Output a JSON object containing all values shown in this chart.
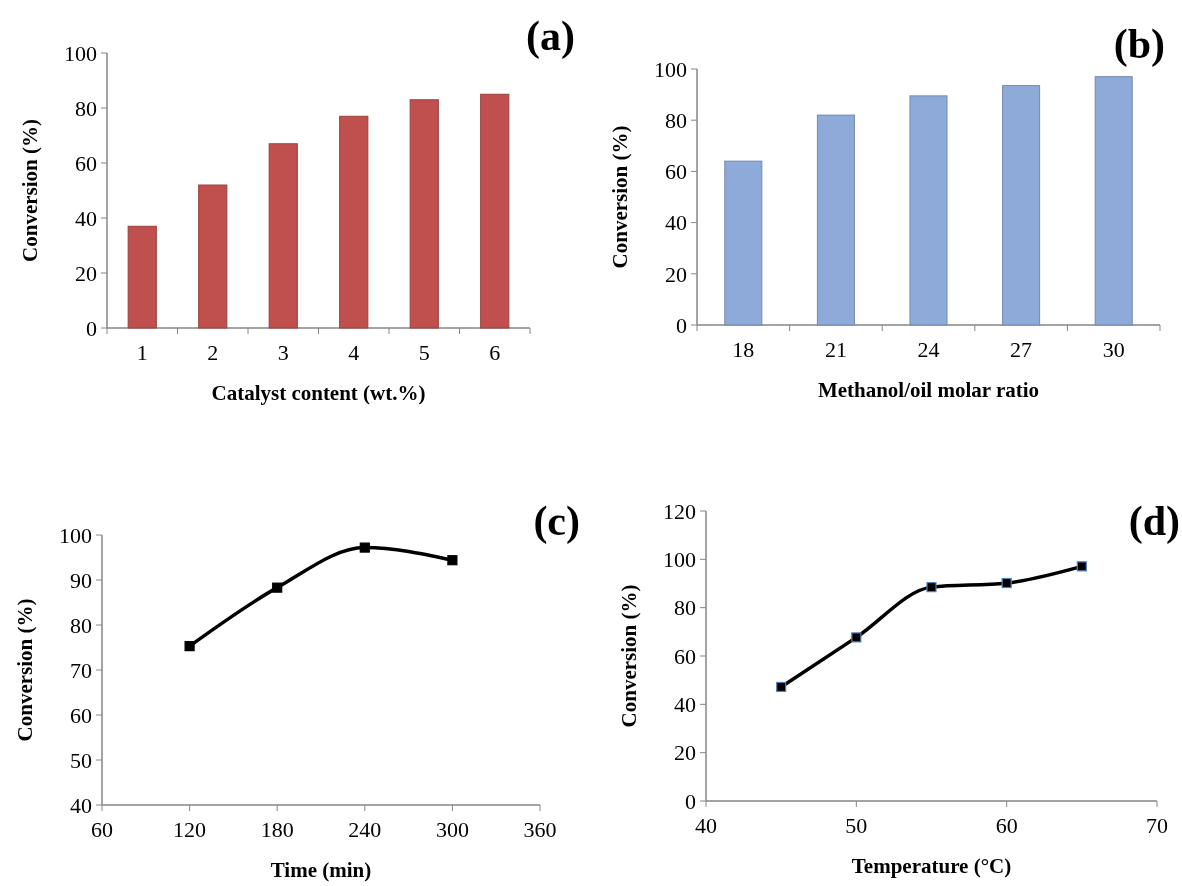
{
  "chart_data": [
    {
      "type": "bar",
      "title": "(a)",
      "xlabel": "Catalyst content (wt.%)",
      "ylabel": "Conversion (%)",
      "categories": [
        "1",
        "2",
        "3",
        "4",
        "5",
        "6"
      ],
      "values": [
        37,
        52,
        67,
        77,
        83,
        85
      ],
      "color": "#c0504d",
      "ylim": [
        0,
        100
      ],
      "yticks": [
        0,
        20,
        40,
        60,
        80,
        100
      ]
    },
    {
      "type": "bar",
      "title": "(b)",
      "xlabel": "Methanol/oil molar ratio",
      "ylabel": "Conversion (%)",
      "categories": [
        "18",
        "21",
        "24",
        "27",
        "30"
      ],
      "values": [
        64,
        82,
        89.5,
        93.5,
        97
      ],
      "color": "#8eaad8",
      "ylim": [
        0,
        100
      ],
      "yticks": [
        0,
        20,
        40,
        60,
        80,
        100
      ]
    },
    {
      "type": "line",
      "title": "(c)",
      "xlabel": "Time (min)",
      "ylabel": "Conversion (%)",
      "x": [
        120,
        180,
        240,
        300
      ],
      "values": [
        75.3,
        88.3,
        97.2,
        94.4
      ],
      "color": "#000000",
      "marker": "square",
      "xlim": [
        60,
        360
      ],
      "xticks": [
        60,
        120,
        180,
        240,
        300,
        360
      ],
      "ylim": [
        40,
        100
      ],
      "yticks": [
        40,
        50,
        60,
        70,
        80,
        90,
        100
      ]
    },
    {
      "type": "line",
      "title": "(d)",
      "xlabel": "Temperature (°C)",
      "ylabel": "Conversion (%)",
      "x": [
        45,
        50,
        55,
        60,
        65
      ],
      "values": [
        47.2,
        67.7,
        88.5,
        90.2,
        97.1
      ],
      "color": "#000000",
      "marker": "square",
      "xlim": [
        40,
        70
      ],
      "xticks": [
        40,
        50,
        60,
        70
      ],
      "ylim": [
        0,
        120
      ],
      "yticks": [
        0,
        20,
        40,
        60,
        80,
        100,
        120
      ]
    }
  ]
}
